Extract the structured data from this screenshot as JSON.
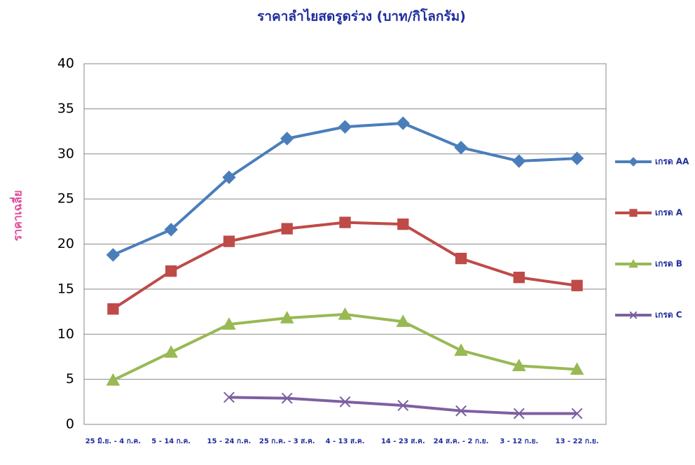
{
  "chart_data": {
    "type": "line",
    "title": "ราคาลำไยสดรูดร่วง (บาท/กิโลกรัม)",
    "y_label": "ราคาเฉลี่ย",
    "categories": [
      "25 มิ.ย. - 4 ก.ค.",
      "5 - 14 ก.ค.",
      "15 - 24 ก.ค.",
      "25 ก.ค. - 3 ส.ค.",
      "4 - 13 ส.ค.",
      "14 - 23 ส.ค.",
      "24 ส.ค. - 2 ก.ย.",
      "3 - 12 ก.ย.",
      "13 - 22 ก.ย."
    ],
    "series": [
      {
        "name": "เกรด AA",
        "color": "#4a7ebb",
        "marker": "diamond",
        "values": [
          18.8,
          21.6,
          27.4,
          31.7,
          33.0,
          33.4,
          30.7,
          29.2,
          29.5
        ]
      },
      {
        "name": "เกรด A",
        "color": "#be4b48",
        "marker": "square",
        "values": [
          12.8,
          17.0,
          20.3,
          21.7,
          22.4,
          22.2,
          18.4,
          16.3,
          15.4
        ]
      },
      {
        "name": "เกรด B",
        "color": "#98b954",
        "marker": "triangle",
        "values": [
          4.9,
          8.0,
          11.1,
          11.8,
          12.2,
          11.4,
          8.2,
          6.5,
          6.1
        ]
      },
      {
        "name": "เกรด C",
        "color": "#7d60a0",
        "marker": "x",
        "values": [
          null,
          null,
          3.0,
          2.9,
          2.5,
          2.1,
          1.5,
          1.2,
          1.2
        ]
      }
    ],
    "ylim": [
      0,
      40
    ],
    "yticks": [
      0,
      5,
      10,
      15,
      20,
      25,
      30,
      35,
      40
    ],
    "grid": true,
    "legend": "right"
  }
}
